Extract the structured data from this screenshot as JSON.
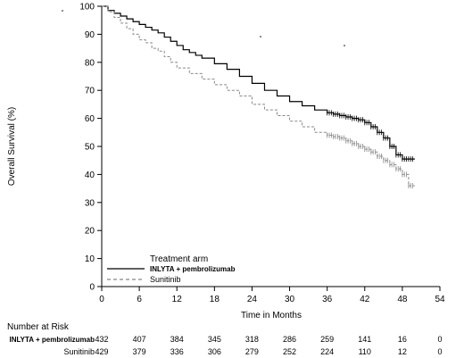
{
  "chart_data": {
    "type": "line",
    "xlabel": "Time in Months",
    "ylabel": "Overall Survival (%)",
    "xlim": [
      0,
      54
    ],
    "ylim": [
      0,
      100
    ],
    "x_ticks": [
      "0",
      "6",
      "12",
      "18",
      "24",
      "30",
      "36",
      "42",
      "48",
      "54"
    ],
    "y_ticks": [
      "0",
      "10",
      "20",
      "30",
      "40",
      "50",
      "60",
      "70",
      "80",
      "90",
      "100"
    ],
    "legend": {
      "title": "Treatment arm",
      "placement": "bottom-left"
    },
    "series": [
      {
        "name": "INLYTA + pembrolizumab",
        "style": "solid",
        "color": "#000000",
        "x": [
          0,
          1,
          2,
          3,
          4,
          5,
          6,
          7,
          8,
          9,
          10,
          11,
          12,
          13,
          14,
          15,
          16,
          18,
          20,
          22,
          24,
          26,
          28,
          30,
          32,
          34,
          36,
          37,
          38,
          39,
          40,
          41,
          42,
          43,
          44,
          45,
          46,
          47,
          48,
          49,
          50
        ],
        "y": [
          100,
          98.5,
          97.5,
          96.5,
          95.5,
          94.5,
          93.5,
          92.5,
          91.5,
          90.5,
          89,
          87.5,
          86,
          84.5,
          83.5,
          82.5,
          81.5,
          79.5,
          77.5,
          75,
          72.5,
          70,
          68,
          66,
          64.5,
          63,
          62,
          61.5,
          61,
          60.5,
          60,
          59.5,
          58.5,
          57,
          55,
          53,
          50,
          47,
          45.5,
          45.5,
          45.5
        ]
      },
      {
        "name": "Sunitinib",
        "style": "dashed",
        "color": "#888888",
        "x": [
          0,
          1,
          2,
          3,
          4,
          5,
          6,
          7,
          8,
          9,
          10,
          11,
          12,
          14,
          16,
          18,
          20,
          22,
          24,
          26,
          28,
          30,
          32,
          34,
          36,
          37,
          38,
          39,
          40,
          41,
          42,
          43,
          44,
          45,
          46,
          47,
          48,
          49,
          50
        ],
        "y": [
          100,
          98,
          96,
          94,
          92,
          90,
          88,
          87,
          85,
          84,
          82,
          80,
          78,
          76,
          74,
          72,
          70,
          68,
          65,
          63,
          61,
          59,
          57,
          55,
          54,
          53.5,
          53,
          52,
          51,
          50,
          49,
          48,
          46.5,
          45,
          43.5,
          42,
          40,
          36,
          36
        ]
      }
    ],
    "risk_table": {
      "title": "Number at Risk",
      "rows": [
        {
          "label": "INLYTA + pembrolizumab",
          "values": [
            "432",
            "407",
            "384",
            "345",
            "318",
            "286",
            "259",
            "141",
            "16",
            "0"
          ]
        },
        {
          "label": "Sunitinib",
          "values": [
            "429",
            "379",
            "336",
            "306",
            "279",
            "252",
            "224",
            "110",
            "12",
            "0"
          ]
        }
      ]
    }
  }
}
